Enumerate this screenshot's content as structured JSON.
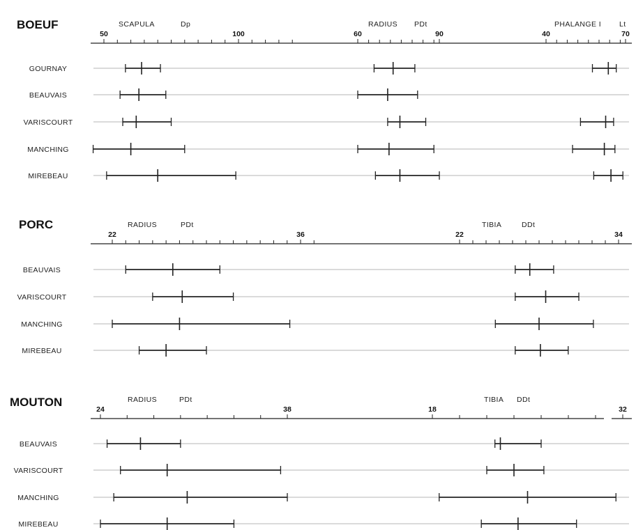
{
  "chart_data": [
    {
      "type": "range",
      "species": "BOEUF",
      "sites": [
        "GOURNAY",
        "BEAUVAIS",
        "VARISCOURT",
        "MANCHING",
        "MIREBEAU"
      ],
      "measures": [
        {
          "bone": "SCAPULA",
          "dimension": "Dp",
          "tick_labels": [
            "50",
            "100"
          ],
          "range_estimate": [
            46,
            121
          ],
          "rows": [
            {
              "site": "GOURNAY",
              "min": 58,
              "mean": 64,
              "max": 71
            },
            {
              "site": "BEAUVAIS",
              "min": 56,
              "mean": 63,
              "max": 73
            },
            {
              "site": "VARISCOURT",
              "min": 57,
              "mean": 62,
              "max": 75
            },
            {
              "site": "MANCHING",
              "min": 46,
              "mean": 60,
              "max": 80
            },
            {
              "site": "MIREBEAU",
              "min": 51,
              "mean": 70,
              "max": 99
            }
          ]
        },
        {
          "bone": "RADIUS",
          "dimension": "PDt",
          "tick_labels": [
            "60",
            "90"
          ],
          "range_estimate": [
            60,
            90
          ],
          "rows": [
            {
              "site": "GOURNAY",
              "min": 66,
              "mean": 73,
              "max": 81
            },
            {
              "site": "BEAUVAIS",
              "min": 60,
              "mean": 71,
              "max": 82
            },
            {
              "site": "VARISCOURT",
              "min": 71,
              "mean": 75.5,
              "max": 85
            },
            {
              "site": "MANCHING",
              "min": 60,
              "mean": 71.5,
              "max": 88
            },
            {
              "site": "MIREBEAU",
              "min": 66.5,
              "mean": 75.5,
              "max": 90
            }
          ]
        },
        {
          "bone": "PHALANGE I",
          "dimension": "Lt",
          "tick_labels": [
            "40",
            "70"
          ],
          "range_estimate": [
            40,
            70
          ],
          "rows": [
            {
              "site": "GOURNAY",
              "min": 57.5,
              "mean": 63.5,
              "max": 66.5
            },
            {
              "site": "BEAUVAIS",
              "min": null,
              "mean": null,
              "max": null
            },
            {
              "site": "VARISCOURT",
              "min": 53,
              "mean": 62.5,
              "max": 65.5
            },
            {
              "site": "MANCHING",
              "min": 50,
              "mean": 62,
              "max": 66
            },
            {
              "site": "MIREBEAU",
              "min": 58,
              "mean": 64.5,
              "max": 69
            }
          ]
        }
      ]
    },
    {
      "type": "range",
      "species": "PORC",
      "sites": [
        "BEAUVAIS",
        "VARISCOURT",
        "MANCHING",
        "MIREBEAU"
      ],
      "measures": [
        {
          "bone": "RADIUS",
          "dimension": "PDt",
          "tick_labels": [
            "22",
            "36"
          ],
          "range_estimate": [
            21.3,
            37
          ],
          "rows": [
            {
              "site": "BEAUVAIS",
              "min": 23,
              "mean": 26.5,
              "max": 30
            },
            {
              "site": "VARISCOURT",
              "min": 25,
              "mean": 27.2,
              "max": 31
            },
            {
              "site": "MANCHING",
              "min": 22,
              "mean": 27,
              "max": 35.2
            },
            {
              "site": "MIREBEAU",
              "min": 24,
              "mean": 26,
              "max": 29
            }
          ]
        },
        {
          "bone": "TIBIA",
          "dimension": "DDt",
          "tick_labels": [
            "22",
            "34"
          ],
          "range_estimate": [
            22,
            34
          ],
          "rows": [
            {
              "site": "BEAUVAIS",
              "min": 26.2,
              "mean": 27.3,
              "max": 29.1
            },
            {
              "site": "VARISCOURT",
              "min": 26.2,
              "mean": 28.5,
              "max": 31
            },
            {
              "site": "MANCHING",
              "min": 24.7,
              "mean": 28,
              "max": 32.1
            },
            {
              "site": "MIREBEAU",
              "min": 26.2,
              "mean": 28.1,
              "max": 30.2
            }
          ]
        }
      ]
    },
    {
      "type": "range",
      "species": "MOUTON",
      "sites": [
        "BEAUVAIS",
        "VARISCOURT",
        "MANCHING",
        "MIREBEAU"
      ],
      "measures": [
        {
          "bone": "RADIUS",
          "dimension": "PDt",
          "tick_labels": [
            "24",
            "38"
          ],
          "range_estimate": [
            23.8,
            38
          ],
          "rows": [
            {
              "site": "BEAUVAIS",
              "min": 24.5,
              "mean": 27,
              "max": 30
            },
            {
              "site": "VARISCOURT",
              "min": 25.5,
              "mean": 29,
              "max": 37.5
            },
            {
              "site": "MANCHING",
              "min": 25,
              "mean": 30.5,
              "max": 38
            },
            {
              "site": "MIREBEAU",
              "min": 24,
              "mean": 29,
              "max": 34
            }
          ]
        },
        {
          "bone": "TIBIA",
          "dimension": "DDt",
          "tick_labels": [
            "18",
            "32"
          ],
          "range_estimate": [
            18,
            32
          ],
          "rows": [
            {
              "site": "BEAUVAIS",
              "min": 22.6,
              "mean": 23,
              "max": 26
            },
            {
              "site": "VARISCOURT",
              "min": 22,
              "mean": 24,
              "max": 26.2
            },
            {
              "site": "MANCHING",
              "min": 18.5,
              "mean": 25,
              "max": 31.5
            },
            {
              "site": "MIREBEAU",
              "min": 21.6,
              "mean": 24.3,
              "max": 28.6
            }
          ]
        }
      ]
    }
  ]
}
